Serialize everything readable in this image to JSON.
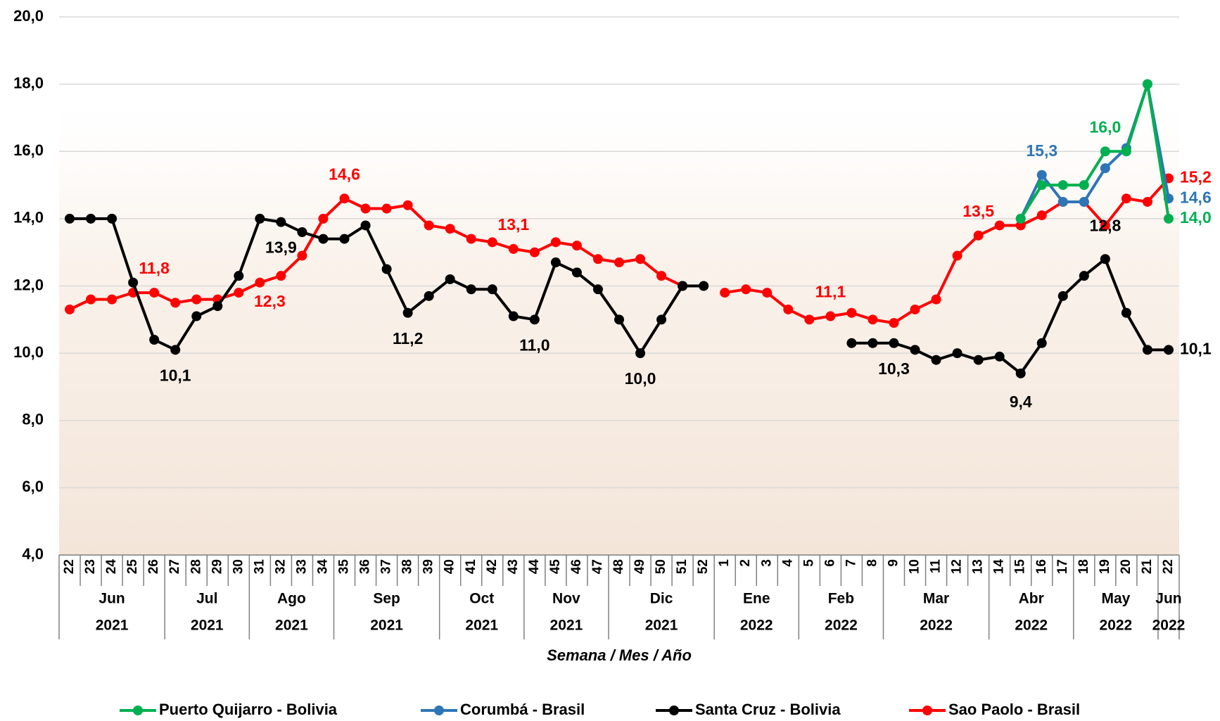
{
  "chart_data": {
    "type": "line",
    "x_label": "Semana / Mes / Año",
    "categories": [
      "22",
      "23",
      "24",
      "25",
      "26",
      "27",
      "28",
      "29",
      "30",
      "31",
      "32",
      "33",
      "34",
      "35",
      "36",
      "37",
      "38",
      "39",
      "40",
      "41",
      "42",
      "43",
      "44",
      "45",
      "46",
      "47",
      "48",
      "49",
      "50",
      "51",
      "52",
      "1",
      "2",
      "3",
      "4",
      "5",
      "6",
      "7",
      "8",
      "9",
      "10",
      "11",
      "12",
      "13",
      "14",
      "15",
      "16",
      "17",
      "18",
      "19",
      "20",
      "21",
      "22"
    ],
    "category_months": [
      "Jun",
      "Jun",
      "Jun",
      "Jun",
      "Jun",
      "Jul",
      "Jul",
      "Jul",
      "Jul",
      "Ago",
      "Ago",
      "Ago",
      "Ago",
      "Sep",
      "Sep",
      "Sep",
      "Sep",
      "Sep",
      "Oct",
      "Oct",
      "Oct",
      "Oct",
      "Nov",
      "Nov",
      "Nov",
      "Nov",
      "Dic",
      "Dic",
      "Dic",
      "Dic",
      "Dic",
      "Ene",
      "Ene",
      "Ene",
      "Ene",
      "Feb",
      "Feb",
      "Feb",
      "Feb",
      "Mar",
      "Mar",
      "Mar",
      "Mar",
      "Mar",
      "Abr",
      "Abr",
      "Abr",
      "Abr",
      "May",
      "May",
      "May",
      "May",
      "Jun"
    ],
    "category_years": [
      "2021",
      "2021",
      "2021",
      "2021",
      "2021",
      "2021",
      "2021",
      "2021",
      "2021",
      "2021",
      "2021",
      "2021",
      "2021",
      "2021",
      "2021",
      "2021",
      "2021",
      "2021",
      "2021",
      "2021",
      "2021",
      "2021",
      "2021",
      "2021",
      "2021",
      "2021",
      "2021",
      "2021",
      "2021",
      "2021",
      "2021",
      "2022",
      "2022",
      "2022",
      "2022",
      "2022",
      "2022",
      "2022",
      "2022",
      "2022",
      "2022",
      "2022",
      "2022",
      "2022",
      "2022",
      "2022",
      "2022",
      "2022",
      "2022",
      "2022",
      "2022",
      "2022",
      "2022"
    ],
    "ylim": [
      4,
      20
    ],
    "yticks": [
      {
        "value": 4,
        "label": "4,0"
      },
      {
        "value": 6,
        "label": "6,0"
      },
      {
        "value": 8,
        "label": "8,0"
      },
      {
        "value": 10,
        "label": "10,0"
      },
      {
        "value": 12,
        "label": "12,0"
      },
      {
        "value": 14,
        "label": "14,0"
      },
      {
        "value": 16,
        "label": "16,0"
      },
      {
        "value": 18,
        "label": "18,0"
      },
      {
        "value": 20,
        "label": "20,0"
      }
    ],
    "grid": true,
    "legend": "bottom",
    "series": [
      {
        "name": "Puerto Quijarro - Bolivia",
        "color": "#00b050",
        "values": [
          null,
          null,
          null,
          null,
          null,
          null,
          null,
          null,
          null,
          null,
          null,
          null,
          null,
          null,
          null,
          null,
          null,
          null,
          null,
          null,
          null,
          null,
          null,
          null,
          null,
          null,
          null,
          null,
          null,
          null,
          null,
          null,
          null,
          null,
          null,
          null,
          null,
          null,
          null,
          null,
          null,
          null,
          null,
          null,
          null,
          14.0,
          15.0,
          15.0,
          15.0,
          16.0,
          16.0,
          18.0,
          14.0
        ],
        "value_labels": [
          null,
          null,
          null,
          null,
          null,
          null,
          null,
          null,
          null,
          null,
          null,
          null,
          null,
          null,
          null,
          null,
          null,
          null,
          null,
          null,
          null,
          null,
          null,
          null,
          null,
          null,
          null,
          null,
          null,
          null,
          null,
          null,
          null,
          null,
          null,
          null,
          null,
          null,
          null,
          null,
          null,
          null,
          null,
          null,
          null,
          null,
          null,
          null,
          null,
          "16,0",
          null,
          null,
          "14,0"
        ]
      },
      {
        "name": "Corumbá - Brasil",
        "color": "#2e75b6",
        "values": [
          null,
          null,
          null,
          null,
          null,
          null,
          null,
          null,
          null,
          null,
          null,
          null,
          null,
          null,
          null,
          null,
          null,
          null,
          null,
          null,
          null,
          null,
          null,
          null,
          null,
          null,
          null,
          null,
          null,
          null,
          null,
          null,
          null,
          null,
          null,
          null,
          null,
          null,
          null,
          null,
          null,
          null,
          null,
          null,
          null,
          14.0,
          15.3,
          14.5,
          14.5,
          15.5,
          16.1,
          18.0,
          14.6
        ],
        "value_labels": [
          null,
          null,
          null,
          null,
          null,
          null,
          null,
          null,
          null,
          null,
          null,
          null,
          null,
          null,
          null,
          null,
          null,
          null,
          null,
          null,
          null,
          null,
          null,
          null,
          null,
          null,
          null,
          null,
          null,
          null,
          null,
          null,
          null,
          null,
          null,
          null,
          null,
          null,
          null,
          null,
          null,
          null,
          null,
          null,
          null,
          null,
          "15,3",
          null,
          null,
          null,
          null,
          null,
          "14,6"
        ]
      },
      {
        "name": "Santa Cruz - Bolivia",
        "color": "#000000",
        "values": [
          14.0,
          14.0,
          14.0,
          12.1,
          10.4,
          10.1,
          11.1,
          11.4,
          12.3,
          14.0,
          13.9,
          13.6,
          13.4,
          13.4,
          13.8,
          12.5,
          11.2,
          11.7,
          12.2,
          11.9,
          11.9,
          11.1,
          11.0,
          12.7,
          12.4,
          11.9,
          11.0,
          10.0,
          11.0,
          12.0,
          12.0,
          null,
          null,
          null,
          null,
          null,
          null,
          10.3,
          10.3,
          10.3,
          10.1,
          9.8,
          10.0,
          9.8,
          9.9,
          9.4,
          10.3,
          11.7,
          12.3,
          12.8,
          11.2,
          10.1,
          10.1
        ],
        "value_labels": [
          null,
          null,
          null,
          null,
          null,
          "10,1",
          null,
          null,
          null,
          null,
          "13,9",
          null,
          null,
          null,
          null,
          null,
          "11,2",
          null,
          null,
          null,
          null,
          null,
          "11,0",
          null,
          null,
          null,
          null,
          "10,0",
          null,
          null,
          null,
          null,
          null,
          null,
          null,
          null,
          null,
          null,
          null,
          "10,3",
          null,
          null,
          null,
          null,
          null,
          "9,4",
          null,
          null,
          null,
          "12,8",
          null,
          null,
          "10,1"
        ]
      },
      {
        "name": "Sao Paolo - Brasil",
        "color": "#ff0000",
        "values": [
          11.3,
          11.6,
          11.6,
          11.8,
          11.8,
          11.5,
          11.6,
          11.6,
          11.8,
          12.1,
          12.3,
          12.9,
          14.0,
          14.6,
          14.3,
          14.3,
          14.4,
          13.8,
          13.7,
          13.4,
          13.3,
          13.1,
          13.0,
          13.3,
          13.2,
          12.8,
          12.7,
          12.8,
          12.3,
          12.0,
          null,
          11.8,
          11.9,
          11.8,
          11.3,
          11.0,
          11.1,
          11.2,
          11.0,
          10.9,
          11.3,
          11.6,
          12.9,
          13.5,
          13.8,
          13.8,
          14.1,
          14.5,
          14.5,
          13.8,
          14.6,
          14.5,
          15.2
        ],
        "value_labels": [
          null,
          null,
          null,
          null,
          "11,8",
          null,
          null,
          null,
          null,
          null,
          "12,3",
          null,
          null,
          "14,6",
          null,
          null,
          null,
          null,
          null,
          null,
          null,
          "13,1",
          null,
          null,
          null,
          null,
          null,
          null,
          null,
          null,
          null,
          null,
          null,
          null,
          null,
          null,
          "11,1",
          null,
          null,
          null,
          null,
          null,
          null,
          "13,5",
          null,
          null,
          null,
          null,
          null,
          null,
          null,
          null,
          "15,2"
        ]
      }
    ]
  }
}
